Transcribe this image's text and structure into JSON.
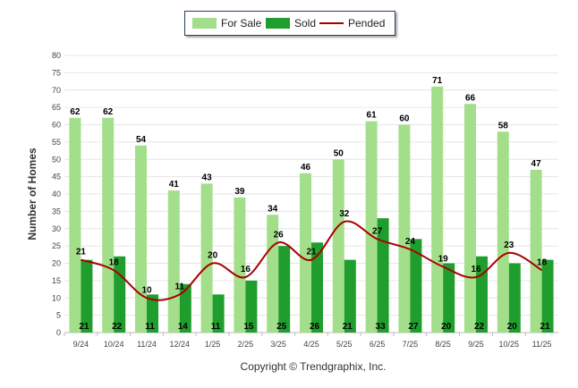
{
  "chart_data": {
    "type": "bar",
    "ylabel": "Number of Homes",
    "xlabel": "",
    "ylim": [
      0,
      80
    ],
    "ytick_step": 5,
    "grid": true,
    "legend_position": "top",
    "categories": [
      "9/24",
      "10/24",
      "11/24",
      "12/24",
      "1/25",
      "2/25",
      "3/25",
      "4/25",
      "5/25",
      "6/25",
      "7/25",
      "8/25",
      "9/25",
      "10/25",
      "11/25"
    ],
    "series": [
      {
        "name": "For Sale",
        "kind": "bar",
        "color": "#a3df8a",
        "values": [
          62,
          62,
          54,
          41,
          43,
          39,
          34,
          46,
          50,
          61,
          60,
          71,
          66,
          58,
          47
        ]
      },
      {
        "name": "Sold",
        "kind": "bar",
        "color": "#1f9e2d",
        "values": [
          21,
          22,
          11,
          14,
          11,
          15,
          25,
          26,
          21,
          33,
          27,
          20,
          22,
          20,
          21
        ]
      },
      {
        "name": "Pended",
        "kind": "line",
        "color": "#a80000",
        "values": [
          21,
          18,
          10,
          11,
          20,
          16,
          26,
          21,
          32,
          27,
          24,
          19,
          16,
          23,
          18
        ]
      }
    ]
  },
  "legend": {
    "for_sale": "For Sale",
    "sold": "Sold",
    "pended": "Pended"
  },
  "footer": "Copyright © Trendgraphix, Inc."
}
